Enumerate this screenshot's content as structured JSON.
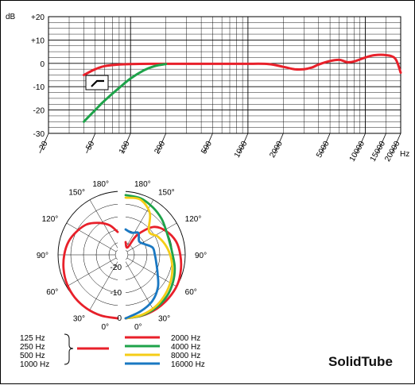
{
  "brand": "SolidTube",
  "chart_data": [
    {
      "type": "line",
      "title": "",
      "ylabel": "dB",
      "xlabel": "Hz",
      "x_scale": "log",
      "xlim": [
        20,
        20000
      ],
      "ylim": [
        -30,
        20
      ],
      "grid": true,
      "y_ticks": [
        "+20",
        "+10",
        "0",
        "-10",
        "-20",
        "-30"
      ],
      "x_tick_labels": [
        "20",
        "50",
        "100",
        "200",
        "500",
        "1000",
        "2000",
        "5000",
        "10000",
        "15000",
        "20000"
      ],
      "highpass_icon": "highpass-filter-icon",
      "series": [
        {
          "color": "#e8202a",
          "x": [
            40,
            50,
            60,
            80,
            100,
            150,
            200,
            300,
            500,
            700,
            1000,
            1500,
            2000,
            2500,
            3000,
            3500,
            4000,
            5000,
            6000,
            7000,
            8000,
            10000,
            12000,
            15000,
            18000,
            20000
          ],
          "y": [
            -5,
            -2.5,
            -1.2,
            -0.5,
            -0.3,
            -0.2,
            -0.2,
            -0.2,
            -0.2,
            -0.2,
            -0.2,
            -0.3,
            -1.5,
            -2.5,
            -2.5,
            -1.8,
            -0.5,
            1,
            1.5,
            0.5,
            0.8,
            2.5,
            3.5,
            3.5,
            2,
            -4
          ]
        },
        {
          "color": "#1ea34a",
          "x": [
            40,
            50,
            60,
            80,
            100,
            130,
            160,
            200
          ],
          "y": [
            -25,
            -20,
            -16,
            -10.5,
            -6.5,
            -3,
            -1.2,
            -0.3
          ]
        }
      ]
    },
    {
      "type": "polar",
      "r_labels": [
        "-20",
        "-10",
        "0"
      ],
      "angle_labels_left": [
        "180°",
        "150°",
        "120°",
        "90°",
        "60°",
        "30°",
        "0°"
      ],
      "angle_labels_right": [
        "180°",
        "150°",
        "120°",
        "90°",
        "60°",
        "30°",
        "0°"
      ],
      "series": [
        {
          "color": "#e8202a",
          "side": "left",
          "frequencies": [
            "125 Hz",
            "250 Hz",
            "500 Hz",
            "1000 Hz"
          ],
          "angles_deg": [
            0,
            15,
            30,
            45,
            60,
            75,
            90,
            105,
            120,
            135,
            150,
            165,
            180
          ],
          "db": [
            0,
            -0.2,
            -0.6,
            -1.2,
            -2,
            -3,
            -4,
            -5,
            -6.5,
            -8,
            -10.5,
            -13,
            -16
          ]
        },
        {
          "color": "#e8202a",
          "side": "right",
          "name": "2000 Hz",
          "angles_deg": [
            0,
            15,
            30,
            45,
            60,
            75,
            90,
            105,
            120,
            135,
            150,
            165,
            180
          ],
          "db": [
            0,
            -0.2,
            -0.5,
            -1,
            -1.5,
            -2.5,
            -3.5,
            -4.5,
            -6.5,
            -9.5,
            -16,
            -22,
            -20
          ]
        },
        {
          "color": "#1ea34a",
          "side": "right",
          "name": "4000 Hz",
          "angles_deg": [
            0,
            15,
            30,
            45,
            60,
            75,
            90,
            105,
            120,
            135,
            150,
            165,
            180
          ],
          "db": [
            0,
            -0.3,
            -1,
            -2,
            -3.5,
            -5,
            -6.5,
            -7,
            -6.5,
            -5,
            -3.5,
            -2,
            -1.5
          ]
        },
        {
          "color": "#f5cd17",
          "side": "right",
          "name": "8000 Hz",
          "angles_deg": [
            0,
            15,
            30,
            45,
            60,
            75,
            90,
            105,
            120,
            135,
            150,
            165,
            180
          ],
          "db": [
            0,
            -0.5,
            -1.5,
            -3,
            -4.5,
            -6,
            -7.5,
            -9,
            -10.5,
            -12,
            -6,
            -2.5,
            -2.5
          ]
        },
        {
          "color": "#1a78c2",
          "side": "right",
          "name": "16000 Hz",
          "angles_deg": [
            0,
            15,
            30,
            45,
            60,
            75,
            90,
            105,
            120,
            135,
            150,
            165,
            180
          ],
          "db": [
            0,
            -2,
            -4,
            -7,
            -10.5,
            -12.5,
            -13.5,
            -14,
            -16.5,
            -17.5,
            -15,
            -16,
            -15
          ]
        }
      ]
    }
  ]
}
